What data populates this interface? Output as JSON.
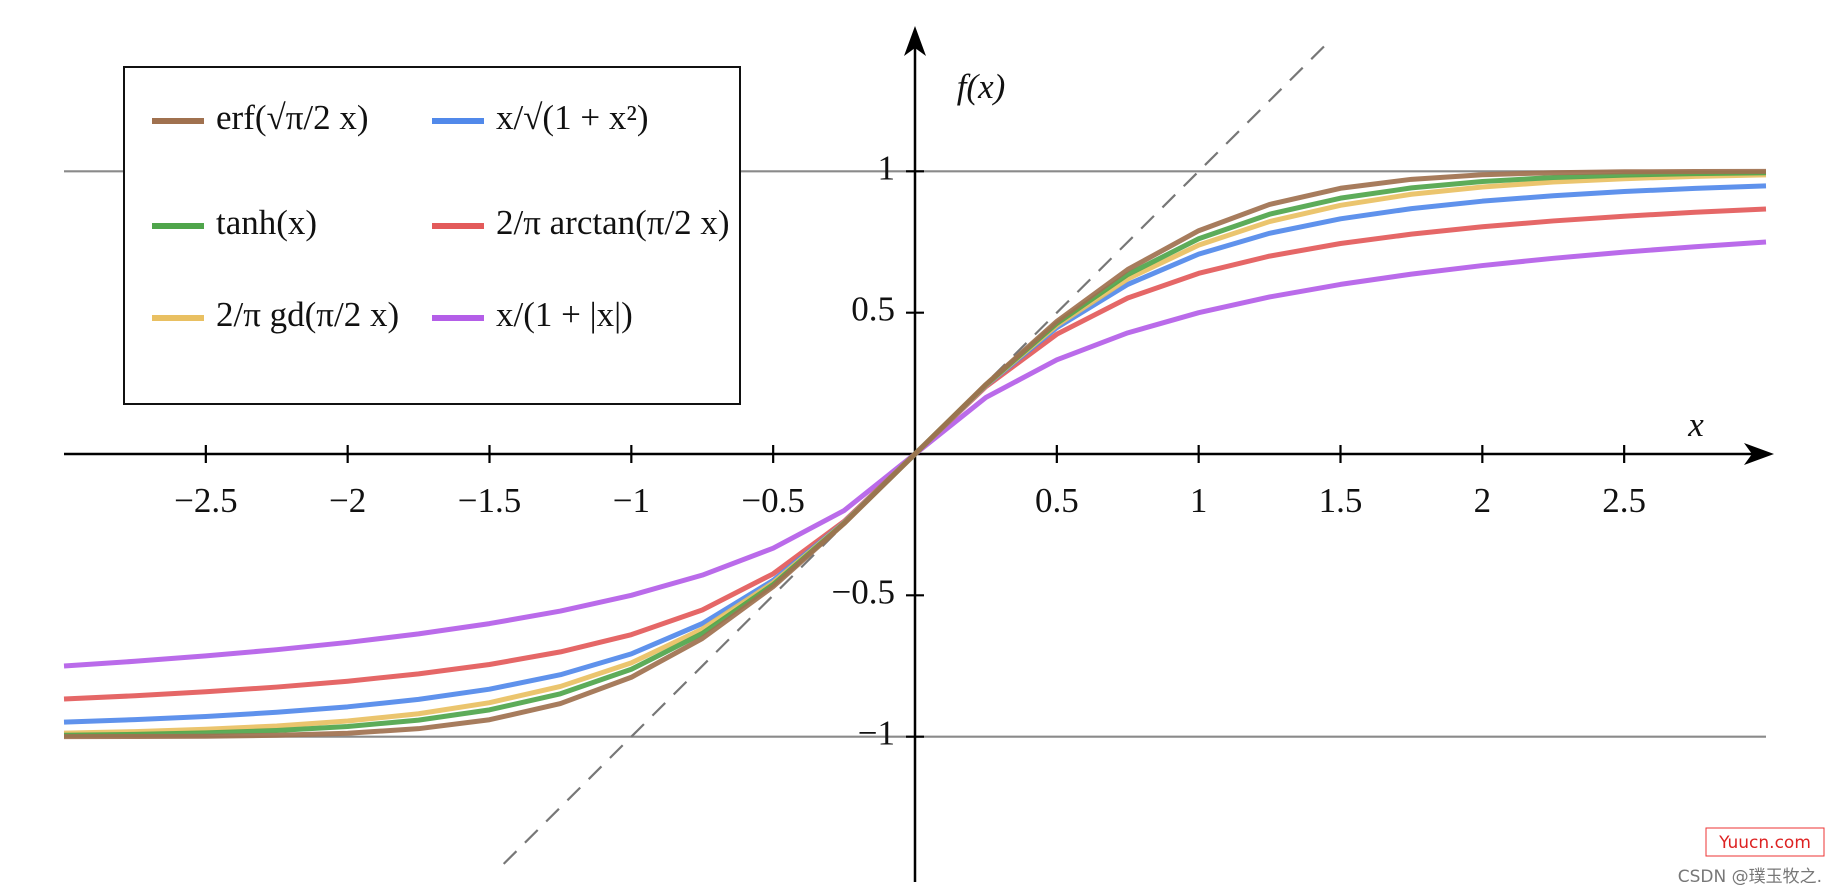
{
  "chart_data": {
    "type": "line",
    "x_label": "x",
    "y_label": "f(x)",
    "x": [
      -3,
      -2.75,
      -2.5,
      -2.25,
      -2,
      -1.75,
      -1.5,
      -1.25,
      -1,
      -0.75,
      -0.5,
      -0.25,
      0,
      0.25,
      0.5,
      0.75,
      1,
      1.25,
      1.5,
      1.75,
      2,
      2.25,
      2.5,
      2.75,
      3
    ],
    "series": [
      {
        "name": "erf(√π/2 x)",
        "color": "#a0714f",
        "values": [
          -0.9998,
          -0.9994,
          -0.9983,
          -0.9952,
          -0.9878,
          -0.9717,
          -0.9401,
          -0.8828,
          -0.7899,
          -0.6528,
          -0.4691,
          -0.246,
          0,
          0.246,
          0.4691,
          0.6528,
          0.7899,
          0.8828,
          0.9401,
          0.9717,
          0.9878,
          0.9952,
          0.9983,
          0.9994,
          0.9998
        ]
      },
      {
        "name": "x/√(1 + x²)",
        "color": "#5189ea",
        "values": [
          -0.9487,
          -0.9398,
          -0.9285,
          -0.9138,
          -0.8944,
          -0.8682,
          -0.8321,
          -0.7809,
          -0.7071,
          -0.6,
          -0.4472,
          -0.2425,
          0,
          0.2425,
          0.4472,
          0.6,
          0.7071,
          0.7809,
          0.8321,
          0.8682,
          0.8944,
          0.9138,
          0.9285,
          0.9398,
          0.9487
        ]
      },
      {
        "name": "tanh(x)",
        "color": "#4fa54b",
        "values": [
          -0.9951,
          -0.9919,
          -0.9866,
          -0.978,
          -0.964,
          -0.9414,
          -0.9051,
          -0.8483,
          -0.7616,
          -0.6351,
          -0.4621,
          -0.2449,
          0,
          0.2449,
          0.4621,
          0.6351,
          0.7616,
          0.8483,
          0.9051,
          0.9414,
          0.964,
          0.978,
          0.9866,
          0.9919,
          0.9951
        ]
      },
      {
        "name": "2/π arctan(π/2 x)",
        "color": "#e35a5a",
        "values": [
          -0.8669,
          -0.8552,
          -0.8412,
          -0.8245,
          -0.8038,
          -0.7778,
          -0.7447,
          -0.7001,
          -0.6391,
          -0.5518,
          -0.4238,
          -0.2384,
          0,
          0.2384,
          0.4238,
          0.5518,
          0.6391,
          0.7001,
          0.7447,
          0.7778,
          0.8038,
          0.8245,
          0.8412,
          0.8552,
          0.8669
        ]
      },
      {
        "name": "2/π gd(π/2 x)",
        "color": "#e9c062",
        "values": [
          -0.9873,
          -0.982,
          -0.9739,
          -0.9622,
          -0.9447,
          -0.9189,
          -0.8798,
          -0.8223,
          -0.7389,
          -0.6196,
          -0.4553,
          -0.2439,
          0,
          0.2439,
          0.4553,
          0.6196,
          0.7389,
          0.8223,
          0.8798,
          0.9189,
          0.9447,
          0.9622,
          0.9739,
          0.982,
          0.9873
        ]
      },
      {
        "name": "x/(1 + |x|)",
        "color": "#b45ee8",
        "values": [
          -0.75,
          -0.7333,
          -0.7143,
          -0.6923,
          -0.6667,
          -0.6364,
          -0.6,
          -0.5556,
          -0.5,
          -0.4286,
          -0.3333,
          -0.2,
          0,
          0.2,
          0.3333,
          0.4286,
          0.5,
          0.5556,
          0.6,
          0.6364,
          0.6667,
          0.6923,
          0.7143,
          0.7333,
          0.75
        ]
      }
    ],
    "diagonal": {
      "x": [
        -1.45,
        1.47
      ],
      "y": [
        -1.45,
        1.47
      ],
      "color": "#777",
      "dashed": true
    },
    "hlines": [
      -1,
      1
    ],
    "xlim": [
      -3,
      3
    ],
    "ylim": [
      -1.5,
      1.5
    ],
    "xticks": [
      {
        "value": -2.5,
        "label": "−2.5"
      },
      {
        "value": -2,
        "label": "−2"
      },
      {
        "value": -1.5,
        "label": "−1.5"
      },
      {
        "value": -1,
        "label": "−1"
      },
      {
        "value": -0.5,
        "label": "−0.5"
      },
      0.5,
      1,
      1.5,
      2,
      2.5
    ],
    "yticks": [
      {
        "value": -1,
        "label": "−1"
      },
      {
        "value": -0.5,
        "label": "−0.5"
      },
      0.5,
      1
    ],
    "legend": "upper left"
  },
  "watermarks": [
    "Yuucn.com",
    "CSDN @璞玉牧之."
  ]
}
